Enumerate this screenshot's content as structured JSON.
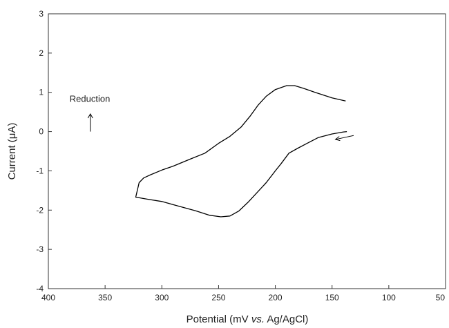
{
  "chart_data": {
    "type": "line",
    "title": "",
    "xlabel": "Potential (mV vs. Ag/AgCl)",
    "xlabel_parts": {
      "before": "Potential (mV ",
      "italic": "vs.",
      "after": " Ag/AgCl)"
    },
    "ylabel": "Current (μA)",
    "xlim": [
      400,
      50
    ],
    "ylim": [
      -4,
      3
    ],
    "x_ticks": [
      400,
      350,
      300,
      250,
      200,
      150,
      100,
      50
    ],
    "x_tick_labels": [
      "400",
      "350",
      "300",
      "250",
      "200",
      "150",
      "100",
      "50"
    ],
    "y_ticks": [
      3,
      2,
      1,
      0,
      -1,
      -2,
      -3,
      -4
    ],
    "y_tick_labels": [
      "3",
      "2",
      "1",
      "0",
      "-1",
      "-2",
      "-3",
      "-4"
    ],
    "grid": false,
    "series": [
      {
        "color": "#000000",
        "x": [
          138,
          150,
          165,
          175,
          183,
          190,
          200,
          208,
          215,
          222,
          230,
          240,
          250,
          262,
          275,
          290,
          300,
          310,
          316,
          320,
          323,
          313,
          300,
          285,
          270,
          258,
          248,
          240,
          232,
          224,
          216,
          208,
          200,
          195,
          188,
          180,
          172,
          162,
          150,
          140,
          137
        ],
        "y": [
          0.78,
          0.86,
          1.0,
          1.1,
          1.17,
          1.17,
          1.07,
          0.9,
          0.68,
          0.4,
          0.12,
          -0.12,
          -0.3,
          -0.55,
          -0.7,
          -0.88,
          -0.98,
          -1.1,
          -1.18,
          -1.3,
          -1.67,
          -1.72,
          -1.78,
          -1.9,
          -2.02,
          -2.13,
          -2.17,
          -2.15,
          -2.02,
          -1.8,
          -1.55,
          -1.3,
          -1.0,
          -0.82,
          -0.55,
          -0.42,
          -0.3,
          -0.15,
          -0.06,
          -0.01,
          0.0
        ]
      }
    ],
    "annotations": {
      "reduction_label": "Reduction",
      "reduction_arrow": {
        "x": 363,
        "y_from": 0.0,
        "y_to": 0.45
      },
      "scan_arrow": {
        "x_from": 131,
        "y_from": -0.1,
        "x_to": 147,
        "y_to": -0.2
      }
    }
  }
}
